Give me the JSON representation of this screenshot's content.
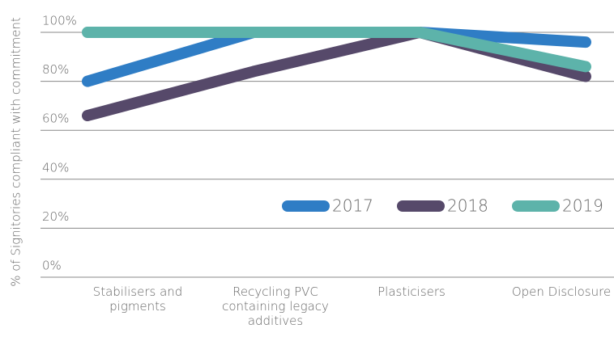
{
  "chart_data": {
    "type": "line",
    "y_axis_label": "% of Signitories compliant with commitment",
    "categories": [
      "Stabilisers and pigments",
      "Recycling PVC containing legacy additives",
      "Plasticisers",
      "Open Disclosure"
    ],
    "series": [
      {
        "name": "2017",
        "color": "#2f7dc5",
        "values": [
          80,
          100,
          100,
          96
        ]
      },
      {
        "name": "2018",
        "color": "#56496a",
        "values": [
          66,
          84,
          100,
          82
        ]
      },
      {
        "name": "2019",
        "color": "#5db3aa",
        "values": [
          100,
          100,
          100,
          86
        ]
      }
    ],
    "ylim": [
      0,
      100
    ],
    "yticks": [
      {
        "value": 0,
        "label": "0%"
      },
      {
        "value": 20,
        "label": "20%"
      },
      {
        "value": 40,
        "label": "40%"
      },
      {
        "value": 60,
        "label": "60%"
      },
      {
        "value": 80,
        "label": "80%"
      },
      {
        "value": 100,
        "label": "100%"
      }
    ],
    "grid": true,
    "legend": "right"
  }
}
